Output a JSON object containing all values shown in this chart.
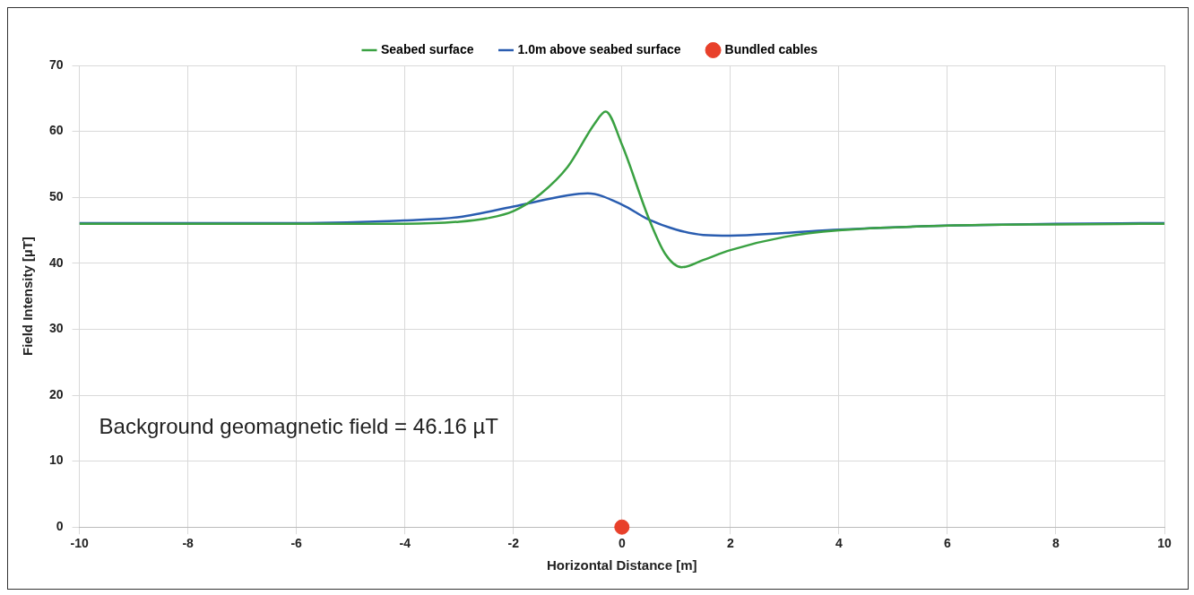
{
  "chart_data": {
    "type": "line",
    "xlabel": "Horizontal Distance [m]",
    "ylabel": "Field Intensity [µT]",
    "xlim": [
      -10,
      10
    ],
    "xticks": [
      -10,
      -8,
      -6,
      -4,
      -2,
      0,
      2,
      4,
      6,
      8,
      10
    ],
    "ylim": [
      0,
      70
    ],
    "yticks": [
      0,
      10,
      20,
      30,
      40,
      50,
      60,
      70
    ],
    "grid": true,
    "legend": "top",
    "marker": "none",
    "annotations": [
      "Background geomagnetic field = 46.16 µT"
    ],
    "series": [
      {
        "name": "Seabed surface",
        "color": "#3aa142",
        "x": [
          -10,
          -8,
          -6,
          -4,
          -3,
          -2.5,
          -2,
          -1.5,
          -1,
          -0.5,
          -0.3,
          0,
          0.5,
          0.8,
          1.1,
          1.5,
          2,
          3,
          4,
          6,
          8,
          10
        ],
        "values": [
          46,
          46,
          46,
          46,
          46.3,
          46.8,
          47.9,
          50.5,
          54.6,
          61.2,
          63,
          58,
          46.7,
          41.4,
          39.4,
          40.5,
          42,
          44,
          45,
          45.7,
          45.9,
          46
        ]
      },
      {
        "name": "1.0m above seabed surface",
        "color": "#2a5db0",
        "x": [
          -10,
          -8,
          -6,
          -4,
          -3,
          -2,
          -1,
          -0.63,
          0,
          0.5,
          1,
          1.5,
          2,
          3,
          4,
          6,
          8,
          10
        ],
        "values": [
          46.1,
          46.1,
          46.1,
          46.5,
          47,
          48.6,
          50.3,
          50.6,
          48.9,
          46.6,
          45.1,
          44.3,
          44.2,
          44.6,
          45.1,
          45.7,
          46,
          46.1
        ]
      },
      {
        "name": "Bundled cables",
        "type": "scatter",
        "marker": "circle",
        "color": "#e8402a",
        "x": [
          0
        ],
        "values": [
          0
        ]
      }
    ]
  }
}
